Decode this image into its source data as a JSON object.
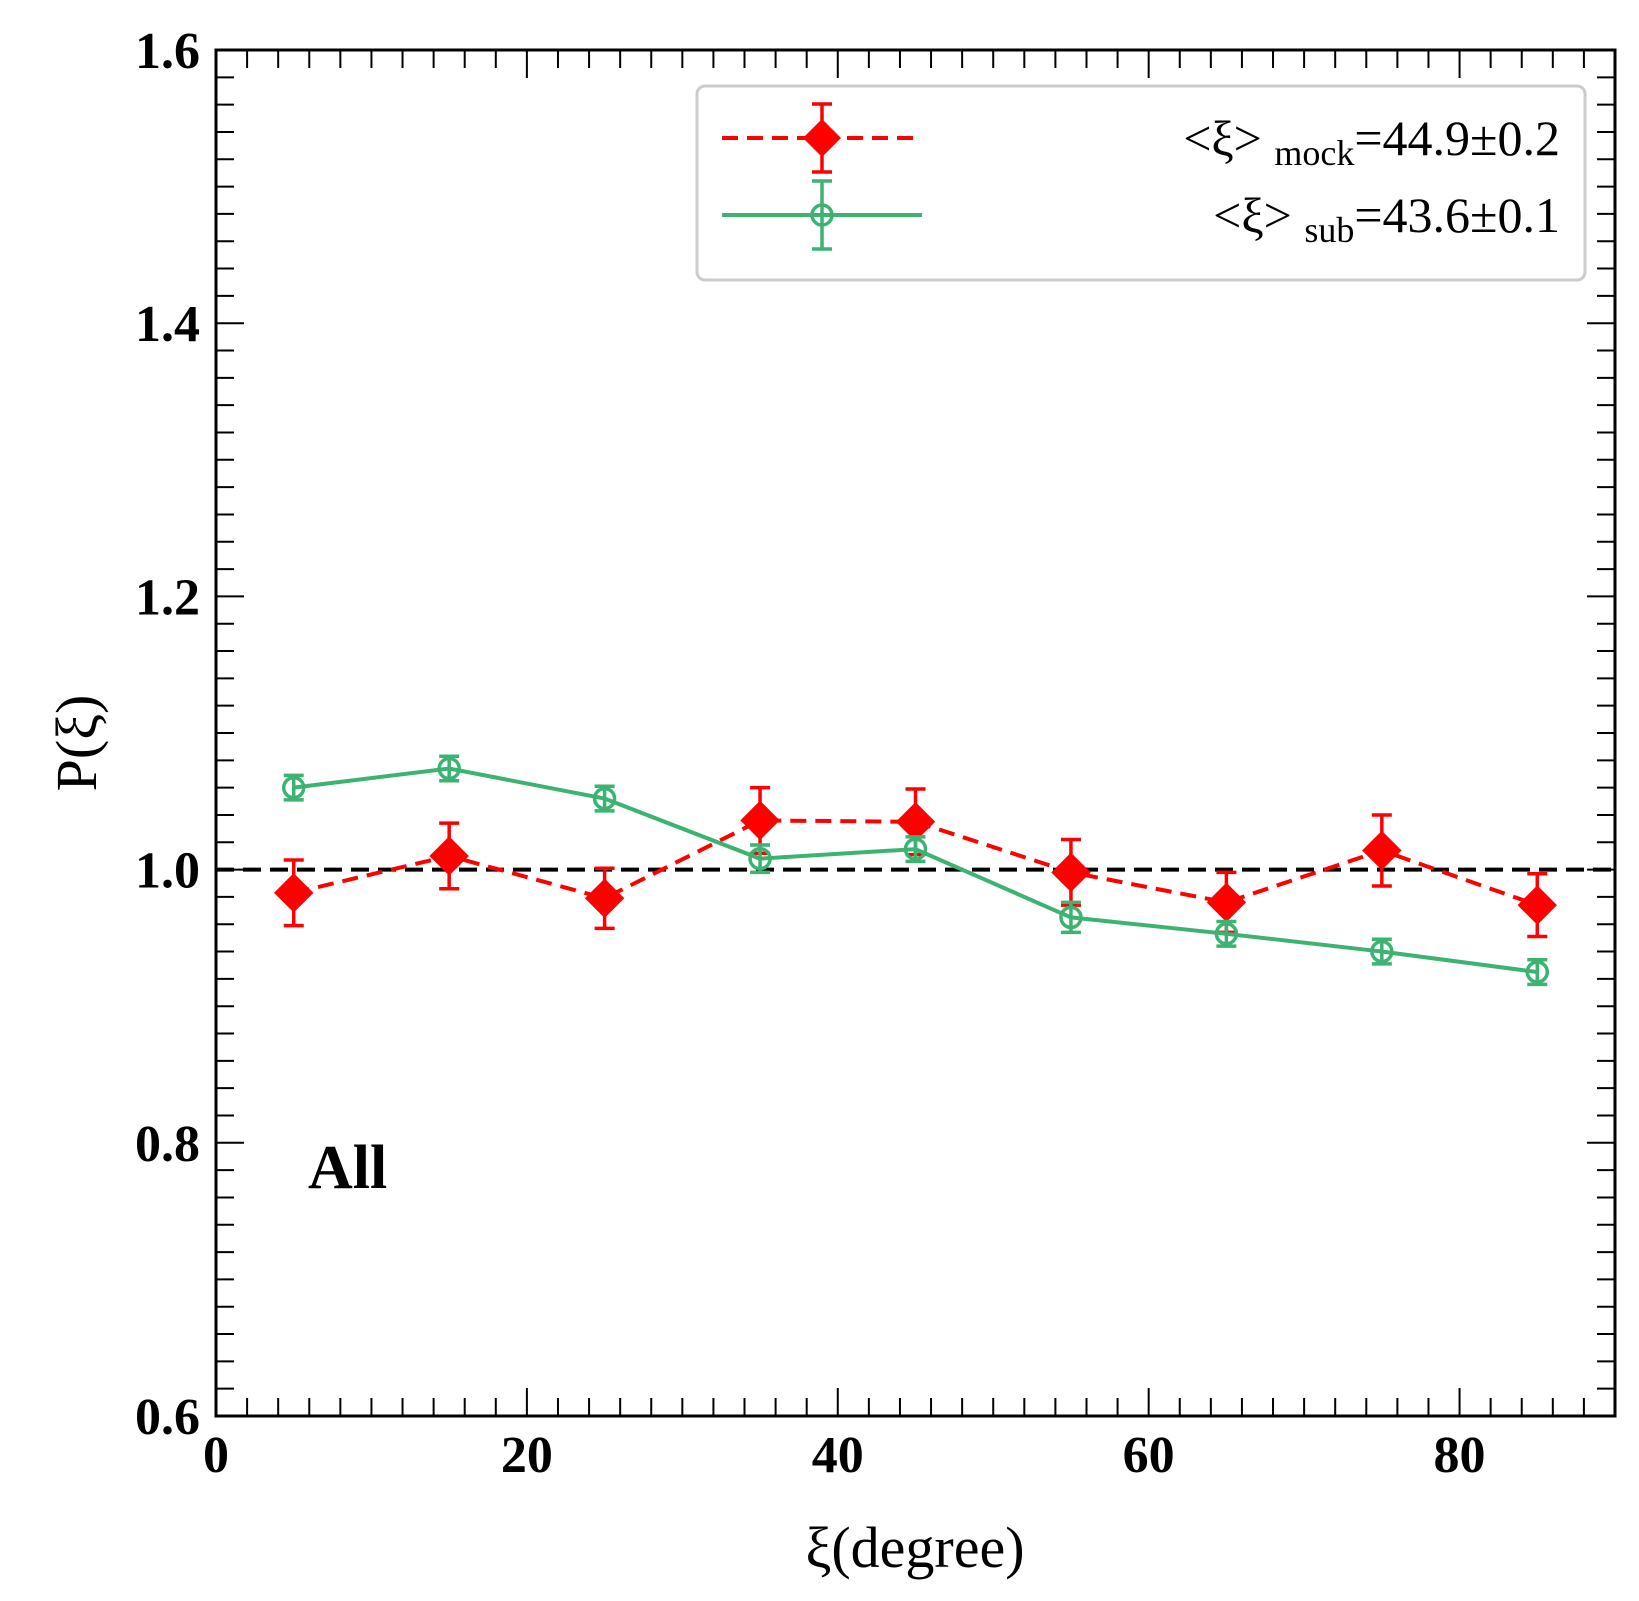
{
  "chart_data": {
    "type": "line",
    "title": "",
    "xlabel": "ξ(degree)",
    "ylabel": "P(ξ)",
    "xlim": [
      0,
      90
    ],
    "ylim": [
      0.6,
      1.6
    ],
    "x_ticks": [
      0,
      20,
      40,
      60,
      80
    ],
    "x_tick_labels": [
      "0",
      "20",
      "40",
      "60",
      "80"
    ],
    "y_ticks": [
      0.6,
      0.8,
      1.0,
      1.2,
      1.4,
      1.6
    ],
    "y_tick_labels": [
      "0.6",
      "0.8",
      "1.0",
      "1.2",
      "1.4",
      "1.6"
    ],
    "x_minor_step": 2,
    "y_minor_step": 0.02,
    "grid": false,
    "legend_position": "top-right",
    "reference_line": {
      "y": 1.0,
      "style": "dashed",
      "color": "#000000"
    },
    "annotation": "All",
    "x": [
      5,
      15,
      25,
      35,
      45,
      55,
      65,
      75,
      85
    ],
    "series": [
      {
        "name": "mock",
        "legend_prefix": "<ξ>",
        "legend_sub": "mock",
        "legend_value": "=44.9±0.2",
        "color": "#ff0000",
        "line_style": "dashed",
        "marker": "filled-diamond",
        "values": [
          0.983,
          1.01,
          0.979,
          1.036,
          1.035,
          0.998,
          0.976,
          1.014,
          0.974
        ],
        "errors": [
          0.024,
          0.024,
          0.022,
          0.024,
          0.024,
          0.024,
          0.022,
          0.026,
          0.023
        ]
      },
      {
        "name": "sub",
        "legend_prefix": "<ξ>",
        "legend_sub": "sub",
        "legend_value": "=43.6±0.1",
        "color": "#3cb371",
        "line_style": "solid",
        "marker": "open-circle",
        "values": [
          1.06,
          1.074,
          1.052,
          1.008,
          1.015,
          0.965,
          0.953,
          0.94,
          0.925
        ],
        "errors": [
          0.009,
          0.009,
          0.009,
          0.01,
          0.009,
          0.011,
          0.009,
          0.009,
          0.009
        ]
      }
    ]
  }
}
